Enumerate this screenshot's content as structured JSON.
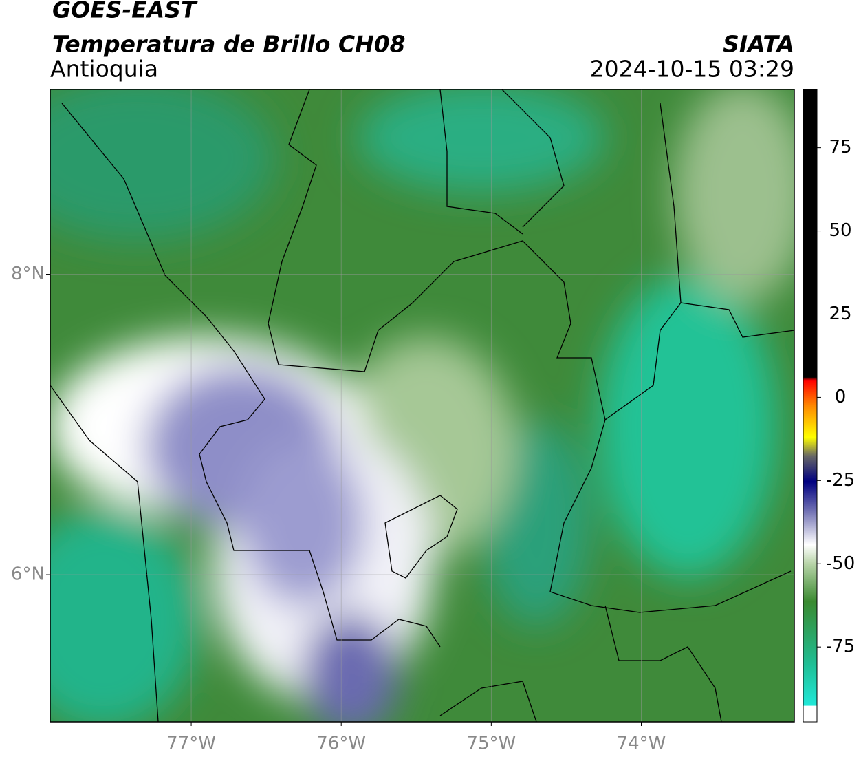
{
  "header": {
    "line1": "GOES-EAST",
    "line2": "Temperatura de Brillo CH08",
    "region": "Antioquia",
    "source": "SIATA",
    "datetime": "2024-10-15 03:29"
  },
  "map": {
    "xlim": [
      -77.94,
      -72.98
    ],
    "ylim": [
      5.02,
      9.23
    ],
    "xticks": [
      {
        "value": -77,
        "label": "77°W"
      },
      {
        "value": -76,
        "label": "76°W"
      },
      {
        "value": -75,
        "label": "75°W"
      },
      {
        "value": -74,
        "label": "74°W"
      }
    ],
    "yticks": [
      {
        "value": 6,
        "label": "6°N"
      },
      {
        "value": 8,
        "label": "8°N"
      }
    ],
    "grid": true
  },
  "colorbar": {
    "clim": [
      -97.5,
      92.5
    ],
    "ticks": [
      75,
      50,
      25,
      0,
      -25,
      -50,
      -75
    ]
  }
}
